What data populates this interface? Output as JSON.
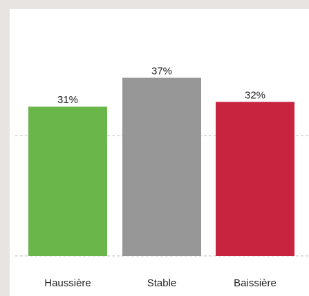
{
  "chart_data": {
    "type": "bar",
    "categories": [
      "Haussière",
      "Stable",
      "Baissière"
    ],
    "values": [
      31,
      37,
      32
    ],
    "value_labels": [
      "31%",
      "37%",
      "32%"
    ],
    "colors": [
      "#6ab64a",
      "#979797",
      "#c8233f"
    ],
    "title": "",
    "xlabel": "",
    "ylabel": "",
    "ylim": [
      0,
      50
    ],
    "gridlines": [
      0,
      25
    ],
    "grid": true,
    "legend": "none"
  }
}
